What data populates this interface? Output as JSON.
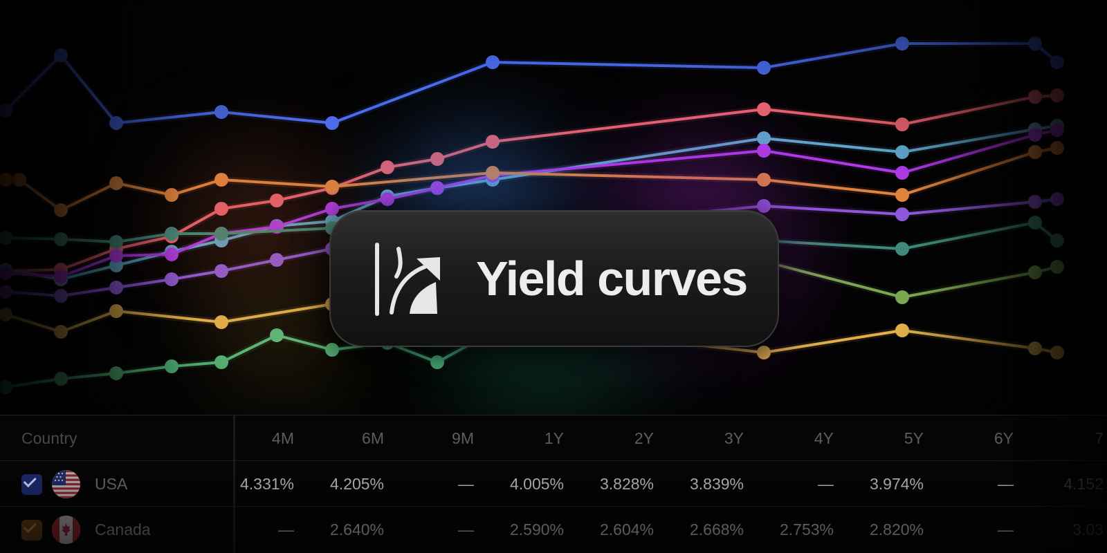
{
  "badge": {
    "title": "Yield curves",
    "icon": "yield-curve-icon"
  },
  "table": {
    "header_country": "Country",
    "columns": [
      "4M",
      "6M",
      "9M",
      "1Y",
      "2Y",
      "3Y",
      "4Y",
      "5Y",
      "6Y",
      "7"
    ],
    "rows": [
      {
        "country": "USA",
        "checked": true,
        "checkbox_color": "#1a2a6c",
        "flag": "us-flag",
        "values": [
          "4.331%",
          "4.205%",
          "—",
          "4.005%",
          "3.828%",
          "3.839%",
          "—",
          "3.974%",
          "—",
          "4.152"
        ]
      },
      {
        "country": "Canada",
        "checked": true,
        "checkbox_color": "#4a2c10",
        "flag": "canada-flag",
        "values": [
          "—",
          "2.640%",
          "—",
          "2.590%",
          "2.604%",
          "2.668%",
          "2.753%",
          "2.820%",
          "—",
          "3.03"
        ]
      }
    ]
  },
  "chart_data": {
    "type": "line",
    "title": "",
    "xlabel": "",
    "ylabel": "",
    "grid": false,
    "legend": "none",
    "x": [
      0,
      1,
      2,
      3,
      4,
      5,
      6,
      7,
      8,
      9,
      10,
      11,
      12,
      13,
      14,
      15,
      16,
      17,
      18,
      19,
      20
    ],
    "ylim": [
      0,
      600
    ],
    "series": [
      {
        "color": "#4a6df0",
        "points": [
          [
            0.1,
            440
          ],
          [
            1.1,
            520
          ],
          [
            2.1,
            422
          ],
          [
            4,
            438
          ],
          [
            6,
            422
          ],
          [
            8.9,
            510
          ],
          [
            13.8,
            502
          ],
          [
            16.3,
            537
          ],
          [
            18.7,
            537
          ],
          [
            19.1,
            510
          ]
        ]
      },
      {
        "color": "#e8626e",
        "points": [
          [
            0.1,
            208
          ],
          [
            1.1,
            210
          ],
          [
            2.1,
            240
          ],
          [
            3.1,
            258
          ],
          [
            4,
            298
          ],
          [
            5,
            310
          ],
          [
            6,
            328
          ],
          [
            7,
            358
          ],
          [
            7.9,
            370
          ],
          [
            8.9,
            395
          ],
          [
            13.8,
            442
          ],
          [
            16.3,
            420
          ],
          [
            18.7,
            460
          ],
          [
            19.1,
            462
          ]
        ]
      },
      {
        "color": "#5fa8cc",
        "points": [
          [
            0.1,
            210
          ],
          [
            1.1,
            196
          ],
          [
            2.1,
            216
          ],
          [
            3.1,
            236
          ],
          [
            4,
            252
          ],
          [
            5,
            273
          ],
          [
            6,
            280
          ],
          [
            7,
            316
          ],
          [
            7.9,
            328
          ],
          [
            8.9,
            340
          ],
          [
            13.8,
            400
          ],
          [
            16.3,
            380
          ],
          [
            18.7,
            413
          ],
          [
            19.1,
            418
          ]
        ]
      },
      {
        "color": "#b03ae8",
        "points": [
          [
            0.1,
            205
          ],
          [
            1.1,
            200
          ],
          [
            2.1,
            230
          ],
          [
            3.1,
            232
          ],
          [
            4,
            262
          ],
          [
            5,
            272
          ],
          [
            6,
            298
          ],
          [
            7,
            312
          ],
          [
            7.9,
            328
          ],
          [
            8.9,
            346
          ],
          [
            13.8,
            382
          ],
          [
            16.3,
            350
          ],
          [
            18.7,
            405
          ],
          [
            19.1,
            412
          ]
        ]
      },
      {
        "color": "#e0843c",
        "points": [
          [
            0.1,
            340
          ],
          [
            0.35,
            340
          ],
          [
            1.1,
            296
          ],
          [
            2.1,
            335
          ],
          [
            3.1,
            318
          ],
          [
            4,
            340
          ],
          [
            6,
            330
          ],
          [
            8.9,
            350
          ],
          [
            13.8,
            340
          ],
          [
            16.3,
            318
          ],
          [
            18.7,
            380
          ],
          [
            19.1,
            386
          ]
        ]
      },
      {
        "color": "#8e58da",
        "points": [
          [
            0.1,
            178
          ],
          [
            1.1,
            172
          ],
          [
            2.1,
            184
          ],
          [
            3.1,
            196
          ],
          [
            4,
            208
          ],
          [
            5,
            224
          ],
          [
            6,
            240
          ],
          [
            13.8,
            302
          ],
          [
            16.3,
            290
          ],
          [
            18.7,
            308
          ],
          [
            19.1,
            312
          ]
        ]
      },
      {
        "color": "#3f8a7a",
        "points": [
          [
            0.1,
            256
          ],
          [
            1.1,
            254
          ],
          [
            2.1,
            250
          ],
          [
            3.1,
            262
          ],
          [
            4,
            262
          ],
          [
            6,
            270
          ],
          [
            13.8,
            252
          ],
          [
            16.3,
            240
          ],
          [
            18.7,
            278
          ],
          [
            19.1,
            252
          ]
        ]
      },
      {
        "color": "#7aa850",
        "points": [
          [
            13.8,
            222
          ],
          [
            16.3,
            170
          ],
          [
            18.7,
            206
          ],
          [
            19.1,
            214
          ]
        ]
      },
      {
        "color": "#e2b04a",
        "points": [
          [
            0.1,
            145
          ],
          [
            1.1,
            120
          ],
          [
            2.1,
            150
          ],
          [
            4,
            134
          ],
          [
            6,
            160
          ],
          [
            13.8,
            90
          ],
          [
            16.3,
            122
          ],
          [
            18.7,
            96
          ],
          [
            19.1,
            90
          ]
        ]
      },
      {
        "color": "#4fb87a",
        "points": [
          [
            0.1,
            40
          ],
          [
            1.1,
            52
          ],
          [
            2.1,
            60
          ],
          [
            3.1,
            70
          ],
          [
            4,
            76
          ],
          [
            5,
            115
          ],
          [
            6,
            94
          ],
          [
            7,
            104
          ],
          [
            7.9,
            76
          ],
          [
            8.9,
            120
          ]
        ]
      }
    ]
  },
  "colors": {
    "background": "#030303",
    "badge": "#1c1c1c",
    "text": "#ededed"
  }
}
